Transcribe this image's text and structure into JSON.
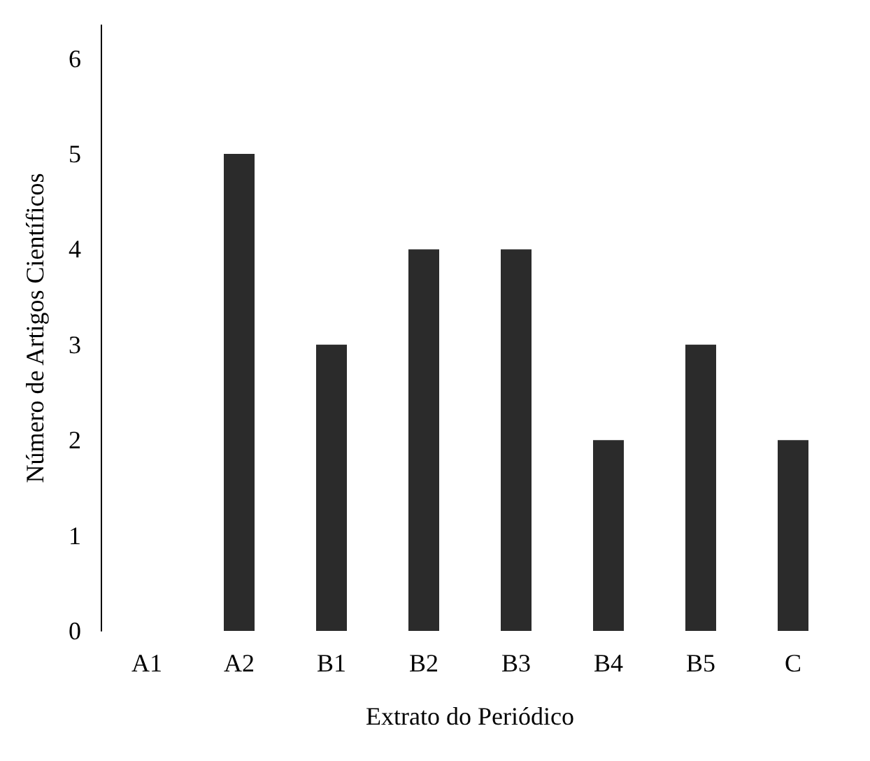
{
  "chart_data": {
    "type": "bar",
    "xlabel": "Extrato do Periódico",
    "ylabel": "Número de Artigos Científicos",
    "categories": [
      "A1",
      "A2",
      "B1",
      "B2",
      "B3",
      "B4",
      "B5",
      "C"
    ],
    "values": [
      0,
      5,
      3,
      4,
      4,
      2,
      3,
      2
    ],
    "color": "#2b2b2b",
    "ylim": [
      0,
      6.35
    ],
    "yticks": [
      0,
      1,
      2,
      3,
      4,
      5,
      6
    ],
    "grid": false
  }
}
